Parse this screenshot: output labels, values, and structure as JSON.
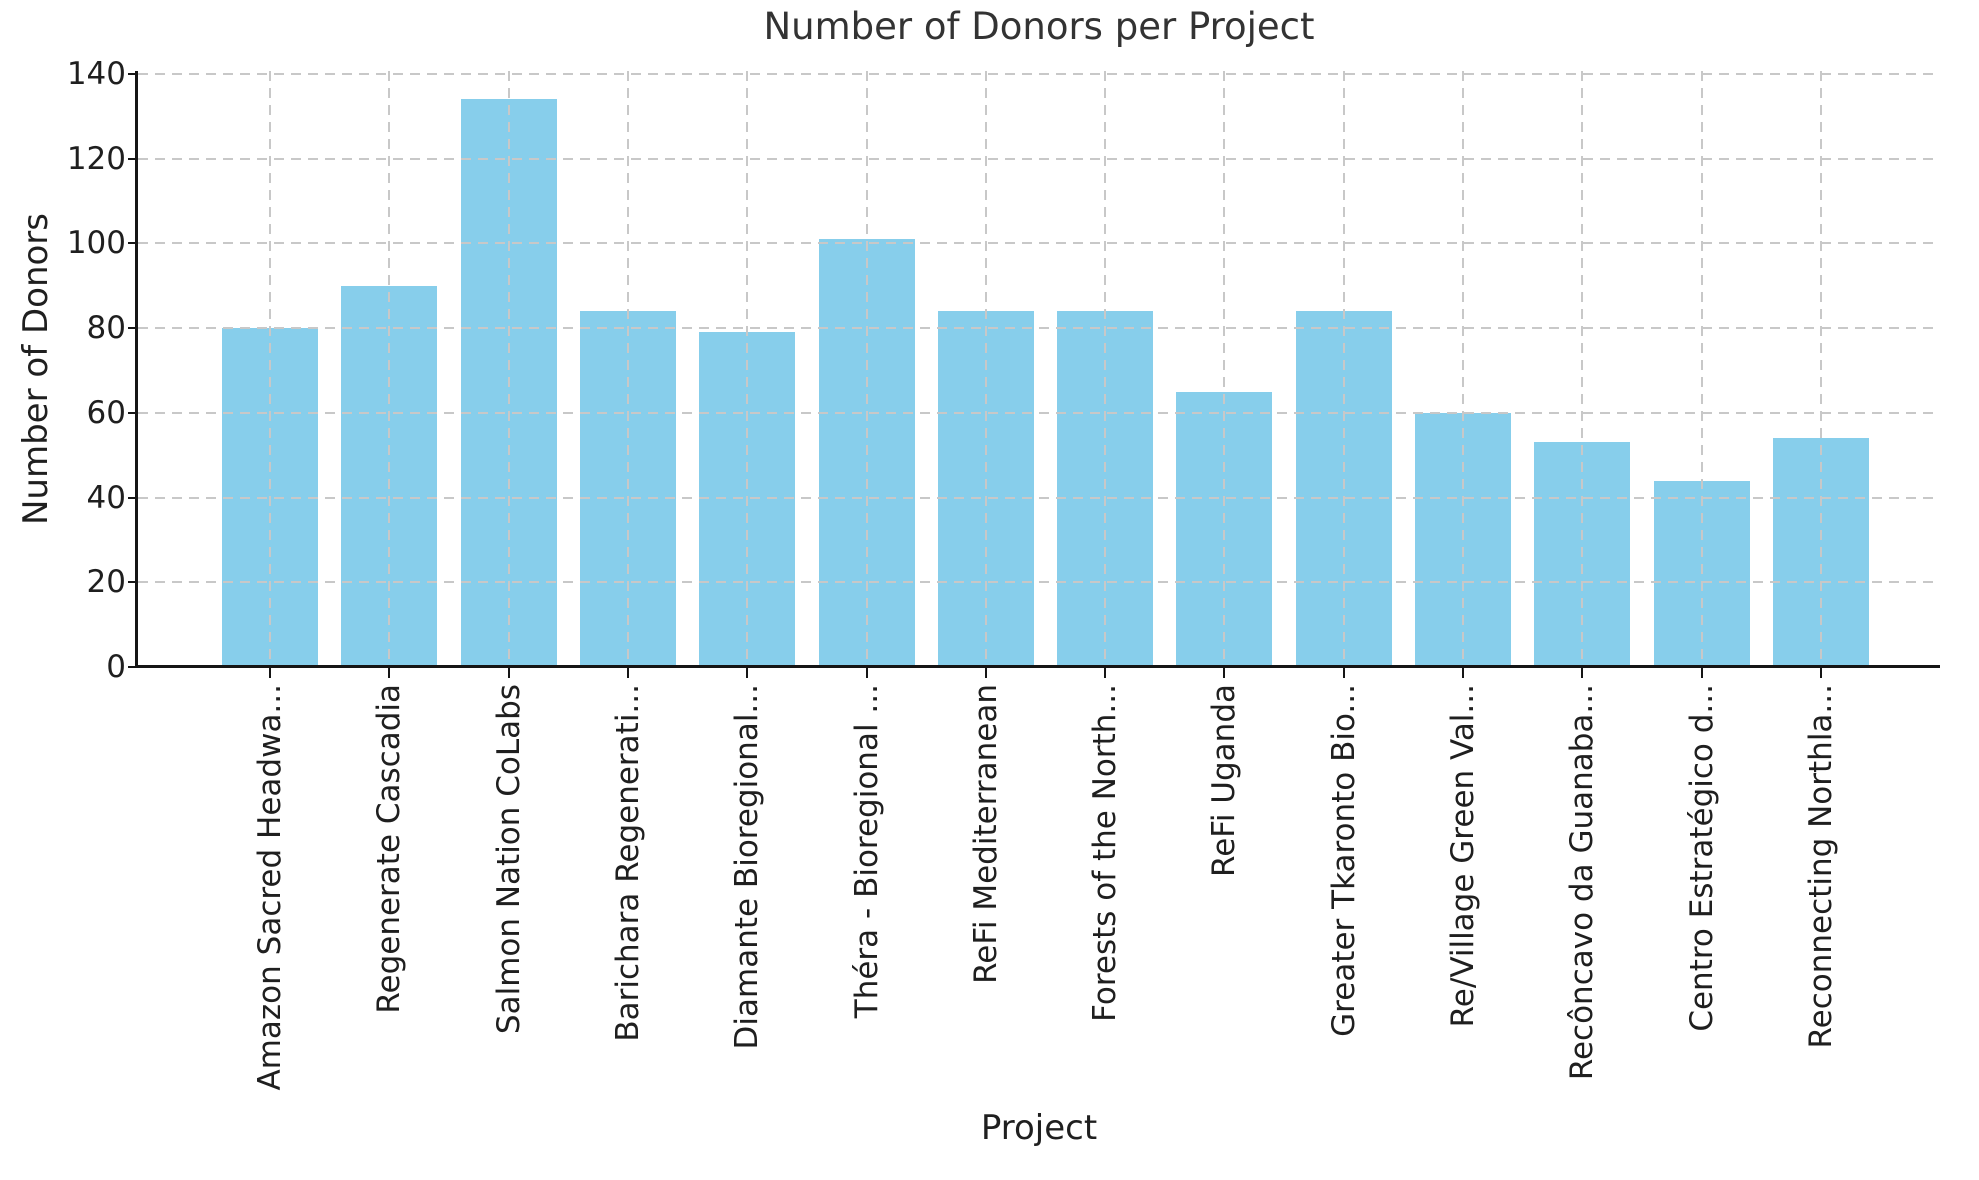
{
  "chart_data": {
    "type": "bar",
    "title": "Number of Donors per Project",
    "xlabel": "Project",
    "ylabel": "Number of Donors",
    "categories": [
      "Amazon Sacred Headwa...",
      "Regenerate Cascadia",
      "Salmon Nation CoLabs",
      "Barichara Regenerati...",
      "Diamante Bioregional...",
      "Théra - Bioregional ...",
      "ReFi Mediterranean",
      "Forests of the North...",
      "ReFi Uganda",
      "Greater Tkaronto Bio...",
      "Re/Village Green Val...",
      "Recôncavo da Guanaba...",
      "Centro Estratégico d...",
      "Reconnecting Northla..."
    ],
    "values": [
      80,
      90,
      134,
      84,
      79,
      101,
      84,
      84,
      65,
      84,
      60,
      53,
      44,
      54
    ],
    "yticks": [
      0,
      20,
      40,
      60,
      80,
      100,
      120,
      140
    ],
    "ylim": [
      0,
      140.7
    ],
    "x_tick_rotation": 90,
    "bar_color": "#87CEEB",
    "grid": {
      "visible": true,
      "style": "dashed",
      "axes": "both",
      "color": "#c8c8c8",
      "above_bars": true
    },
    "legend": null
  }
}
